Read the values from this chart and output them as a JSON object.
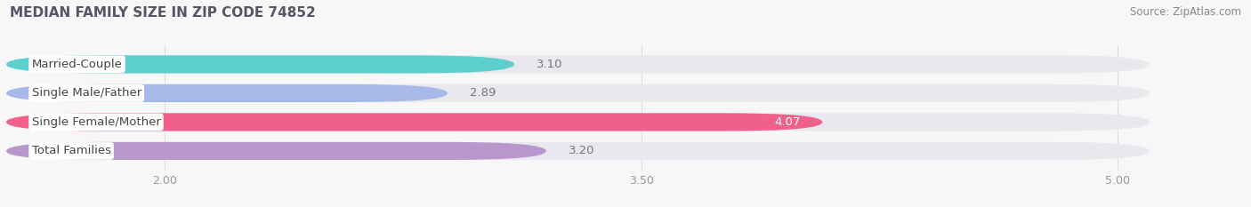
{
  "title": "MEDIAN FAMILY SIZE IN ZIP CODE 74852",
  "source": "Source: ZipAtlas.com",
  "categories": [
    "Married-Couple",
    "Single Male/Father",
    "Single Female/Mother",
    "Total Families"
  ],
  "values": [
    3.1,
    2.89,
    4.07,
    3.2
  ],
  "bar_colors": [
    "#5ecfcf",
    "#a8b8e8",
    "#f0608a",
    "#b898cc"
  ],
  "bar_bg_color": "#e8e8ee",
  "xlim_min": 1.5,
  "xlim_max": 5.4,
  "xlim_data_min": 1.5,
  "xlim_data_max": 5.1,
  "xticks": [
    2.0,
    3.5,
    5.0
  ],
  "bar_height": 0.62,
  "label_fontsize": 9.5,
  "value_fontsize": 9.5,
  "title_fontsize": 11,
  "source_fontsize": 8.5,
  "tick_fontsize": 9,
  "bg_color": "#f7f7f7",
  "title_color": "#555566",
  "source_color": "#888888",
  "tick_color": "#999999",
  "value_color_inside": "#ffffff",
  "value_color_outside": "#777777",
  "label_bg_color": "#ffffff",
  "grid_color": "#dddddd"
}
